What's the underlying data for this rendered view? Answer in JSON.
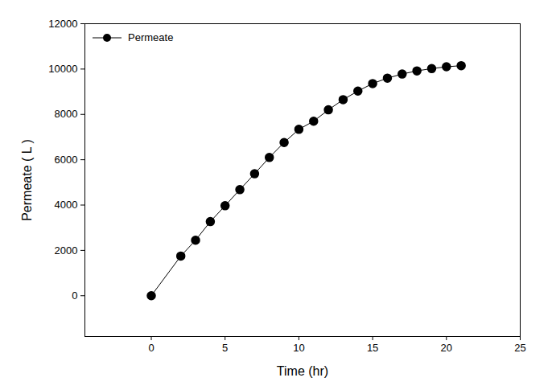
{
  "chart_data": {
    "type": "line",
    "x_label": "Time (hr)",
    "y_label": "Permeate ( L )",
    "x": [
      0,
      2,
      3,
      4,
      5,
      6,
      7,
      8,
      9,
      10,
      11,
      12,
      13,
      14,
      15,
      16,
      17,
      18,
      19,
      20,
      21
    ],
    "series": [
      {
        "name": "Permeate",
        "color": "#000000",
        "marker": "circle",
        "line_style": "solid",
        "values": [
          0,
          1750,
          2450,
          3270,
          3970,
          4680,
          5380,
          6100,
          6760,
          7340,
          7700,
          8200,
          8650,
          9030,
          9360,
          9600,
          9780,
          9920,
          10020,
          10100,
          10150
        ]
      }
    ],
    "xlim": [
      -4.5,
      25
    ],
    "ylim": [
      -1800,
      12000
    ],
    "xticks": [
      0,
      5,
      10,
      15,
      20,
      25
    ],
    "yticks": [
      0,
      2000,
      4000,
      6000,
      8000,
      10000,
      12000
    ],
    "legend": "upper left",
    "grid": false
  }
}
